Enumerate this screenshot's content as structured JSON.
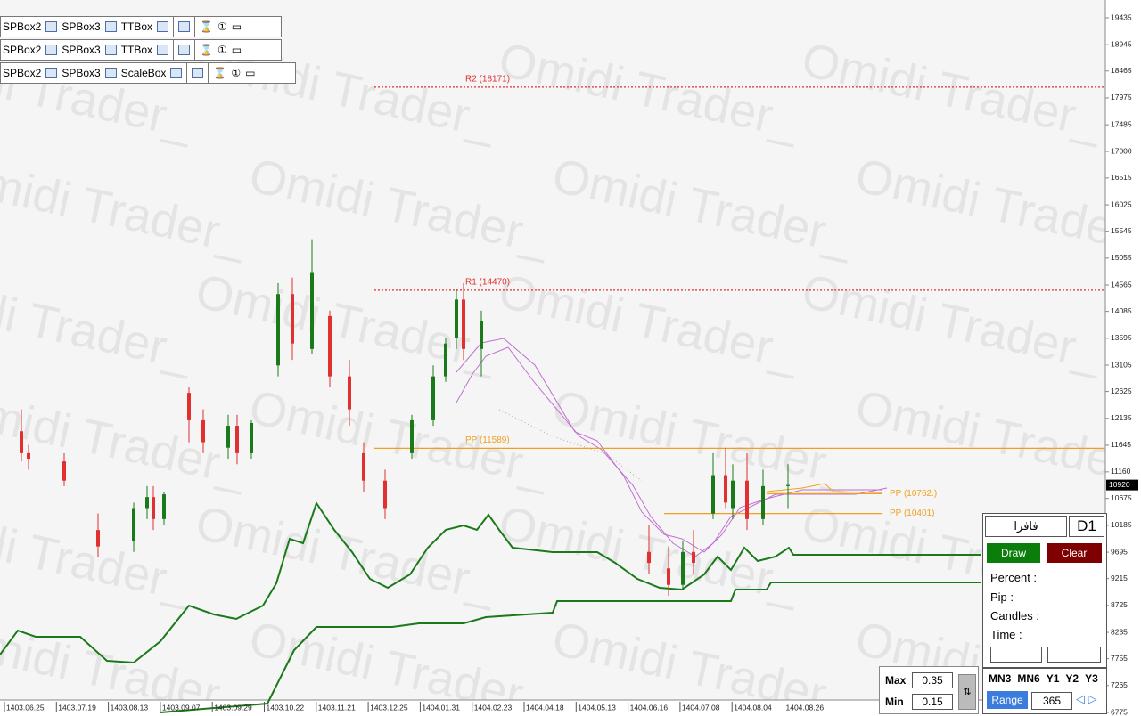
{
  "watermark": "Omidi Trader_",
  "toolbar": {
    "rows": [
      [
        "SPBox2",
        "SPBox3",
        "TTBox"
      ],
      [
        "SPBox2",
        "SPBox3",
        "TTBox"
      ],
      [
        "SPBox2",
        "SPBox3",
        "ScaleBox"
      ]
    ]
  },
  "chart": {
    "ylim": [
      6775,
      19435
    ],
    "yticks": [
      19435,
      18945,
      18465,
      17975,
      17485,
      17000,
      16515,
      16025,
      15545,
      15055,
      14565,
      14085,
      13595,
      13105,
      12625,
      12135,
      11645,
      11160,
      10675,
      10185,
      9695,
      9215,
      8725,
      8235,
      7755,
      7265,
      6775
    ],
    "dates": [
      "1403.06.25",
      "1403.07.19",
      "1403.08.13",
      "1403.09.07",
      "1403.09.29",
      "1403.10.22",
      "1403.11.21",
      "1403.12.25",
      "1404.01.31",
      "1404.02.23",
      "1404.04.18",
      "1404.05.13",
      "1404.06.16",
      "1404.07.08",
      "1404.08.04",
      "1404.08.26"
    ],
    "levels": [
      {
        "label": "R2 (18171)",
        "value": 18171,
        "color": "#e03030"
      },
      {
        "label": "R1 (14470)",
        "value": 14470,
        "color": "#e03030"
      },
      {
        "label": "PP (11589)",
        "value": 11589,
        "color": "#f0a020"
      },
      {
        "label": "PP (10762.)",
        "value": 10762,
        "color": "#f0a020"
      },
      {
        "label": "PP (10401)",
        "value": 10401,
        "color": "#f0a020"
      }
    ],
    "current_price": 10920,
    "candles": [
      [
        11900,
        12300,
        11350,
        11500
      ],
      [
        11500,
        11650,
        11200,
        11400
      ],
      [
        11350,
        11500,
        10900,
        11000
      ],
      [
        10100,
        10400,
        9600,
        9800
      ],
      [
        9900,
        10600,
        9700,
        10500
      ],
      [
        10500,
        10900,
        10300,
        10700
      ],
      [
        10700,
        10900,
        10100,
        10300
      ],
      [
        10300,
        10800,
        10200,
        10750
      ],
      [
        12600,
        12700,
        11700,
        12100
      ],
      [
        12100,
        12300,
        11500,
        11700
      ],
      [
        11600,
        12200,
        11400,
        12000
      ],
      [
        12000,
        12200,
        11300,
        11500
      ],
      [
        11500,
        12100,
        11400,
        12050
      ],
      [
        13100,
        14600,
        12900,
        14400
      ],
      [
        14400,
        14700,
        13200,
        13500
      ],
      [
        13400,
        15400,
        13300,
        14800
      ],
      [
        14000,
        14100,
        12700,
        12900
      ],
      [
        12900,
        13200,
        12000,
        12300
      ],
      [
        11500,
        11700,
        10800,
        11000
      ],
      [
        11000,
        11200,
        10300,
        10500
      ],
      [
        11500,
        12200,
        11400,
        12100
      ],
      [
        12100,
        13100,
        12000,
        12900
      ],
      [
        12900,
        13600,
        12800,
        13500
      ],
      [
        13600,
        14500,
        13400,
        14300
      ],
      [
        14300,
        14600,
        13200,
        13400
      ],
      [
        13400,
        14100,
        12900,
        13900
      ],
      [
        9700,
        10200,
        9300,
        9500
      ],
      [
        9400,
        9800,
        8900,
        9100
      ],
      [
        9100,
        9900,
        9000,
        9700
      ],
      [
        9700,
        10100,
        9300,
        9500
      ],
      [
        10400,
        11500,
        10300,
        11100
      ],
      [
        11100,
        11600,
        10500,
        10600
      ],
      [
        10500,
        11300,
        10300,
        11000
      ],
      [
        11000,
        11500,
        10100,
        10300
      ],
      [
        10300,
        11200,
        10200,
        10900
      ],
      [
        10900,
        11300,
        10500,
        10920
      ]
    ]
  },
  "panel": {
    "symbol": "فافزا",
    "timeframe": "D1",
    "draw": "Draw",
    "clear": "Clear",
    "fields": [
      "Percent :",
      "Pip :",
      "Candles :",
      "Time :"
    ],
    "presets": [
      "MN3",
      "MN6",
      "Y1",
      "Y2",
      "Y3"
    ],
    "range": "Range",
    "range_value": "365"
  },
  "scale": {
    "max_label": "Max",
    "max": "0.35",
    "min_label": "Min",
    "min": "0.15"
  }
}
